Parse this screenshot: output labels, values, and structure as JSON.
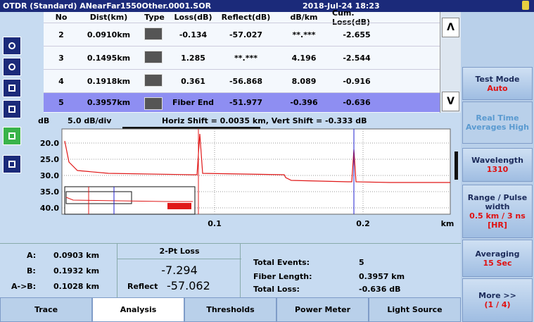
{
  "title_bar": {
    "file": "OTDR (Standard) ANearFar1550Other.0001.SOR",
    "datetime": "2018-Jul-24 18:23"
  },
  "events": {
    "columns": [
      "No",
      "Dist(km)",
      "Type",
      "Loss(dB)",
      "Reflect(dB)",
      "dB/km",
      "Cum. Loss(dB)"
    ],
    "rows": [
      [
        "2",
        "0.0910km",
        "",
        "-0.134",
        "-57.027",
        "**.***",
        "-2.655"
      ],
      [
        "3",
        "0.1495km",
        "",
        "1.285",
        "**.***",
        "4.196",
        "-2.544"
      ],
      [
        "4",
        "0.1918km",
        "",
        "0.361",
        "-56.868",
        "8.089",
        "-0.916"
      ],
      [
        "5",
        "0.3957km",
        "",
        "Fiber End",
        "-51.977",
        "-0.396",
        "-0.636"
      ]
    ]
  },
  "trace": {
    "y_unit": "dB",
    "scale": "5.0 dB/div",
    "shift": "Horiz Shift = 0.0035 km, Vert Shift = -0.333 dB",
    "yticks": [
      "20.0",
      "25.0",
      "30.0",
      "35.0",
      "40.0"
    ],
    "xticks": [
      "0.1",
      "0.2"
    ],
    "x_unit": "km"
  },
  "markers": {
    "a_label": "A:",
    "a": "0.0903 km",
    "b_label": "B:",
    "b": "0.1932 km",
    "ab_label": "A->B:",
    "ab": "0.1028 km"
  },
  "two_pt": {
    "title": "2-Pt Loss",
    "loss": "-7.294",
    "reflect_label": "Reflect",
    "reflect": "-57.062"
  },
  "summary": {
    "events_label": "Total Events:",
    "events": "5",
    "length_label": "Fiber Length:",
    "length": "0.3957 km",
    "loss_label": "Total Loss:",
    "loss": "-0.636 dB"
  },
  "side": [
    {
      "label": "Test Mode",
      "value": "Auto"
    },
    {
      "label": "Real Time Averages High"
    },
    {
      "label": "Wavelength",
      "value": "1310"
    },
    {
      "label": "Range / Pulse width",
      "value": "0.5 km / 3 ns [HR]"
    },
    {
      "label": "Averaging",
      "value": "15 Sec"
    },
    {
      "label": "More >>",
      "value": "(1 / 4)"
    }
  ],
  "tabs": [
    "Trace",
    "Analysis",
    "Thresholds",
    "Power Meter",
    "Light Source"
  ],
  "scroll": {
    "up": "Λ",
    "down": "V"
  }
}
